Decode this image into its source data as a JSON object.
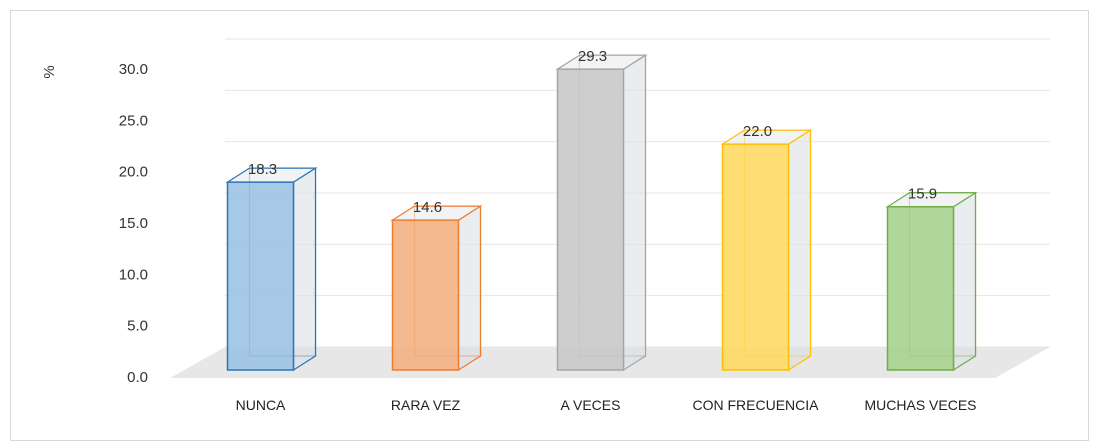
{
  "chart_data": {
    "type": "bar3d",
    "ylabel": "%",
    "categories": [
      "NUNCA",
      "RARA VEZ",
      "A VECES",
      "CON FRECUENCIA",
      "MUCHAS VECES"
    ],
    "values": [
      18.3,
      14.6,
      29.3,
      22.0,
      15.9
    ],
    "value_labels": [
      "18.3",
      "14.6",
      "29.3",
      "22.0",
      "15.9"
    ],
    "colors": [
      "#9dc3e6",
      "#f4b183",
      "#c9c9c9",
      "#ffd966",
      "#a9d18e"
    ],
    "edge_colors": [
      "#2e75b6",
      "#ed7d31",
      "#a5a5a5",
      "#ffc000",
      "#70ad47"
    ],
    "ylim": [
      0,
      30
    ],
    "yticks": [
      {
        "value": 0,
        "label": "0.0"
      },
      {
        "value": 5,
        "label": "5.0"
      },
      {
        "value": 10,
        "label": "10.0"
      },
      {
        "value": 15,
        "label": "15.0"
      },
      {
        "value": 20,
        "label": "20.0"
      },
      {
        "value": 25,
        "label": "25.0"
      },
      {
        "value": 30,
        "label": "30.0"
      }
    ],
    "grid": true
  }
}
